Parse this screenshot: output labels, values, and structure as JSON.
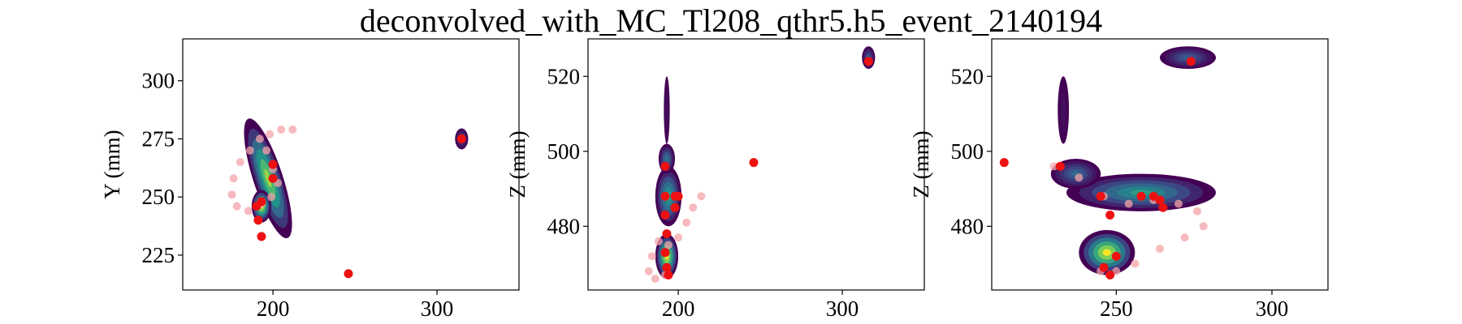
{
  "title": "deconvolved_with_MC_Tl208_qthr5.h5_event_2140194",
  "colors": {
    "track_points": "#ee1111",
    "track_trail": "#f4a3a8",
    "colormap": [
      "#440154",
      "#3b528b",
      "#21908d",
      "#5dc863",
      "#fde725"
    ]
  },
  "chart_data": [
    {
      "type": "heatmap",
      "xlabel": "",
      "ylabel": "Y (mm)",
      "xlim": [
        145,
        350
      ],
      "ylim": [
        210,
        318
      ],
      "xticks": [
        200,
        300
      ],
      "yticks": [
        225,
        250,
        275,
        300
      ],
      "blobs": [
        {
          "cx": 197,
          "cy": 258,
          "rx": 9,
          "ry": 27,
          "angle": -18,
          "peak": 0.85
        },
        {
          "cx": 193,
          "cy": 246,
          "rx": 6,
          "ry": 7,
          "angle": 0,
          "peak": 1.0
        },
        {
          "cx": 315,
          "cy": 275,
          "rx": 4,
          "ry": 4.5,
          "angle": 0,
          "peak": 0.25
        }
      ],
      "points": [
        [
          200,
          264
        ],
        [
          200,
          258
        ],
        [
          193,
          248
        ],
        [
          190,
          246
        ],
        [
          191,
          240
        ],
        [
          193,
          233
        ],
        [
          315,
          275
        ],
        [
          246,
          217
        ]
      ],
      "trail": [
        [
          212,
          279
        ],
        [
          205,
          279
        ],
        [
          198,
          277
        ],
        [
          192,
          275
        ],
        [
          186,
          270
        ],
        [
          180,
          265
        ],
        [
          176,
          258
        ],
        [
          175,
          251
        ],
        [
          178,
          246
        ],
        [
          185,
          244
        ],
        [
          193,
          247
        ],
        [
          199,
          250
        ],
        [
          203,
          256
        ],
        [
          200,
          262
        ],
        [
          196,
          270
        ]
      ]
    },
    {
      "type": "heatmap",
      "xlabel": "",
      "ylabel": "Z (mm)",
      "xlim": [
        145,
        350
      ],
      "ylim": [
        463,
        530
      ],
      "xticks": [
        200,
        300
      ],
      "yticks": [
        480,
        500,
        520
      ],
      "blobs": [
        {
          "cx": 194,
          "cy": 488,
          "rx": 8,
          "ry": 8,
          "angle": 0,
          "peak": 0.6
        },
        {
          "cx": 193,
          "cy": 472,
          "rx": 7,
          "ry": 6,
          "angle": 0,
          "peak": 1.0
        },
        {
          "cx": 193,
          "cy": 498,
          "rx": 5,
          "ry": 4,
          "angle": 0,
          "peak": 0.4
        },
        {
          "cx": 193,
          "cy": 511,
          "rx": 1.8,
          "ry": 9,
          "angle": 0,
          "peak": 0.05
        },
        {
          "cx": 316,
          "cy": 525,
          "rx": 4,
          "ry": 3,
          "angle": 0,
          "peak": 0.3
        }
      ],
      "points": [
        [
          192,
          496
        ],
        [
          192,
          488
        ],
        [
          198,
          488
        ],
        [
          200,
          488
        ],
        [
          198,
          485
        ],
        [
          192,
          483
        ],
        [
          193,
          478
        ],
        [
          192,
          473
        ],
        [
          193,
          469
        ],
        [
          194,
          467
        ],
        [
          246,
          497
        ],
        [
          316,
          524
        ]
      ],
      "trail": [
        [
          214,
          488
        ],
        [
          209,
          485
        ],
        [
          205,
          481
        ],
        [
          200,
          477
        ],
        [
          194,
          475
        ],
        [
          188,
          476
        ],
        [
          184,
          472
        ],
        [
          182,
          468
        ],
        [
          186,
          466
        ],
        [
          192,
          467
        ]
      ]
    },
    {
      "type": "heatmap",
      "xlabel": "",
      "ylabel": "Z (mm)",
      "xlim": [
        210,
        318
      ],
      "ylim": [
        463,
        530
      ],
      "xticks": [
        250,
        300
      ],
      "yticks": [
        480,
        500,
        520
      ],
      "blobs": [
        {
          "cx": 258,
          "cy": 489,
          "rx": 24,
          "ry": 5,
          "angle": 0,
          "peak": 0.55
        },
        {
          "cx": 247,
          "cy": 473,
          "rx": 9,
          "ry": 6,
          "angle": 0,
          "peak": 1.0
        },
        {
          "cx": 237,
          "cy": 494,
          "rx": 8,
          "ry": 4,
          "angle": 0,
          "peak": 0.35
        },
        {
          "cx": 233,
          "cy": 511,
          "rx": 1.8,
          "ry": 9,
          "angle": 0,
          "peak": 0.05
        },
        {
          "cx": 273,
          "cy": 525,
          "rx": 9,
          "ry": 3,
          "angle": 0,
          "peak": 0.3
        }
      ],
      "points": [
        [
          232,
          496
        ],
        [
          245,
          488
        ],
        [
          258,
          488
        ],
        [
          262,
          488
        ],
        [
          264,
          487
        ],
        [
          265,
          485
        ],
        [
          248,
          483
        ],
        [
          250,
          472
        ],
        [
          246,
          469
        ],
        [
          248,
          467
        ],
        [
          214,
          497
        ],
        [
          274,
          524
        ]
      ],
      "trail": [
        [
          230,
          496
        ],
        [
          238,
          493
        ],
        [
          246,
          488
        ],
        [
          254,
          486
        ],
        [
          262,
          487
        ],
        [
          270,
          486
        ],
        [
          276,
          484
        ],
        [
          278,
          480
        ],
        [
          272,
          477
        ],
        [
          264,
          474
        ],
        [
          256,
          470
        ],
        [
          250,
          468
        ],
        [
          245,
          468
        ]
      ]
    }
  ]
}
